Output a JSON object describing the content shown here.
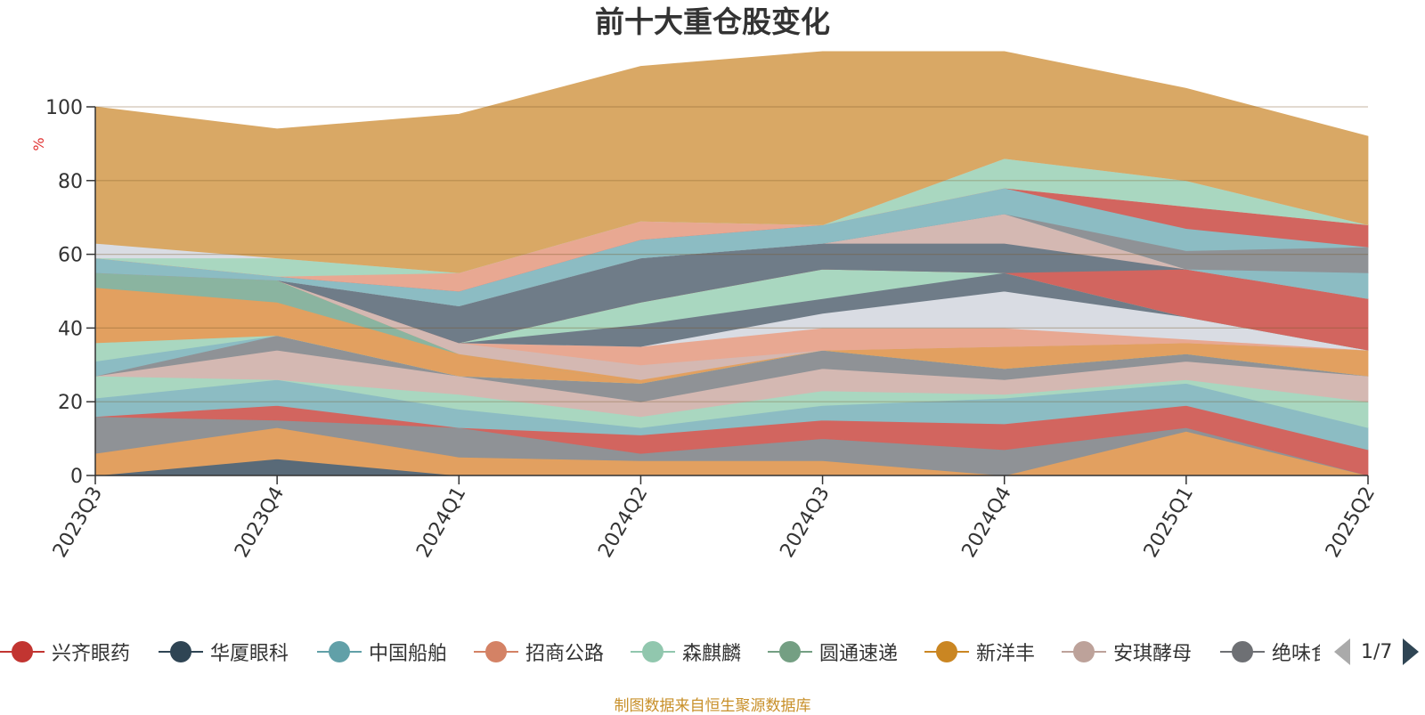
{
  "chart_data": {
    "type": "area",
    "title": "前十大重仓股变化",
    "ylabel": "%",
    "ylim": [
      0,
      100
    ],
    "yticks": [
      0,
      20,
      40,
      60,
      80,
      100
    ],
    "categories": [
      "2023Q3",
      "2023Q4",
      "2024Q1",
      "2024Q2",
      "2024Q3",
      "2024Q4",
      "2025Q1",
      "2025Q2"
    ],
    "bands": [
      {
        "color": "#596a78",
        "values": [
          0,
          4.5,
          0,
          0,
          0,
          0,
          0,
          0
        ]
      },
      {
        "color": "#e2a060",
        "values": [
          6,
          8.5,
          5,
          4,
          4,
          0,
          12,
          0
        ]
      },
      {
        "color": "#8f9296",
        "values": [
          10,
          2,
          8,
          2,
          6,
          7,
          1,
          0
        ]
      },
      {
        "color": "#d2655f",
        "values": [
          0,
          4,
          0,
          5,
          5,
          7,
          6,
          7
        ]
      },
      {
        "color": "#8cbcc3",
        "values": [
          5,
          7,
          5,
          2,
          4,
          7,
          6,
          6
        ]
      },
      {
        "color": "#a9d7c0",
        "values": [
          6,
          0,
          4,
          3,
          4,
          1,
          1,
          7
        ]
      },
      {
        "color": "#d4b8b2",
        "values": [
          0,
          8,
          5,
          4,
          6,
          4,
          5,
          7
        ]
      },
      {
        "color": "#8f9296",
        "values": [
          0,
          4,
          0,
          5,
          5,
          3,
          2,
          0
        ]
      },
      {
        "color": "#8cbcc3",
        "values": [
          4,
          0,
          0,
          0,
          0,
          0,
          0,
          0
        ]
      },
      {
        "color": "#a9d7c0",
        "values": [
          5,
          0,
          0,
          0,
          0,
          0,
          0,
          0
        ]
      },
      {
        "color": "#e2a060",
        "values": [
          15,
          9,
          6,
          0,
          0,
          0,
          0,
          0
        ]
      },
      {
        "color": "#8ab4a0",
        "values": [
          4,
          6,
          0,
          0,
          0,
          0,
          0,
          0
        ]
      },
      {
        "color": "#e2a060",
        "values": [
          0,
          0,
          0,
          1,
          0,
          6,
          3,
          7
        ]
      },
      {
        "color": "#d4b8b2",
        "values": [
          0,
          0,
          3,
          4,
          0,
          0,
          0,
          0
        ]
      },
      {
        "color": "#e8a892",
        "values": [
          0,
          0,
          0,
          5,
          6,
          5,
          1,
          0
        ]
      },
      {
        "color": "#d9dce3",
        "values": [
          0,
          0,
          0,
          0,
          4,
          10,
          6,
          0
        ]
      },
      {
        "color": "#6f7c88",
        "values": [
          0,
          0,
          0,
          6,
          4,
          5,
          0,
          0
        ]
      },
      {
        "color": "#a9d7c0",
        "values": [
          0,
          0,
          0,
          6,
          8,
          0,
          0,
          0
        ]
      },
      {
        "color": "#d2655f",
        "values": [
          0,
          0,
          0,
          0,
          0,
          0,
          13,
          14
        ]
      },
      {
        "color": "#6f7c88",
        "values": [
          0,
          0,
          10,
          12,
          7,
          8,
          0,
          0
        ]
      },
      {
        "color": "#d4b8b2",
        "values": [
          0,
          0,
          0,
          0,
          0,
          8,
          0,
          0
        ]
      },
      {
        "color": "#8cbcc3",
        "values": [
          0,
          0,
          0,
          0,
          0,
          0,
          0,
          7
        ]
      },
      {
        "color": "#8f9296",
        "values": [
          0,
          0,
          0,
          0,
          0,
          0,
          5,
          7
        ]
      },
      {
        "color": "#8cbcc3",
        "values": [
          4,
          1,
          4,
          5,
          5,
          7,
          6,
          0
        ]
      },
      {
        "color": "#d2655f",
        "values": [
          0,
          0,
          0,
          0,
          0,
          0,
          6,
          6
        ]
      },
      {
        "color": "#e8a892",
        "values": [
          0,
          0,
          5,
          5,
          0,
          0,
          0,
          0
        ]
      },
      {
        "color": "#a9d7c0",
        "values": [
          0,
          5,
          0,
          0,
          0,
          8,
          7,
          0
        ]
      },
      {
        "color": "#d9dce3",
        "values": [
          4,
          0,
          0,
          0,
          0,
          0,
          0,
          0
        ]
      },
      {
        "color": "#d9a865",
        "values": [
          37,
          35,
          43,
          42,
          47,
          29,
          25,
          24
        ]
      }
    ]
  },
  "legend": {
    "items": [
      {
        "label": "兴齐眼药",
        "color": "#c23531"
      },
      {
        "label": "华厦眼科",
        "color": "#2f4554"
      },
      {
        "label": "中国船舶",
        "color": "#61a0a8"
      },
      {
        "label": "招商公路",
        "color": "#d48265"
      },
      {
        "label": "森麒麟",
        "color": "#91c7ae"
      },
      {
        "label": "圆通速递",
        "color": "#749f83"
      },
      {
        "label": "新洋丰",
        "color": "#ca8622"
      },
      {
        "label": "安琪酵母",
        "color": "#bda29a"
      },
      {
        "label": "绝味食品",
        "color": "#6e7074"
      }
    ],
    "page": "1/7"
  },
  "footer": {
    "source": "制图数据来自恒生聚源数据库"
  }
}
